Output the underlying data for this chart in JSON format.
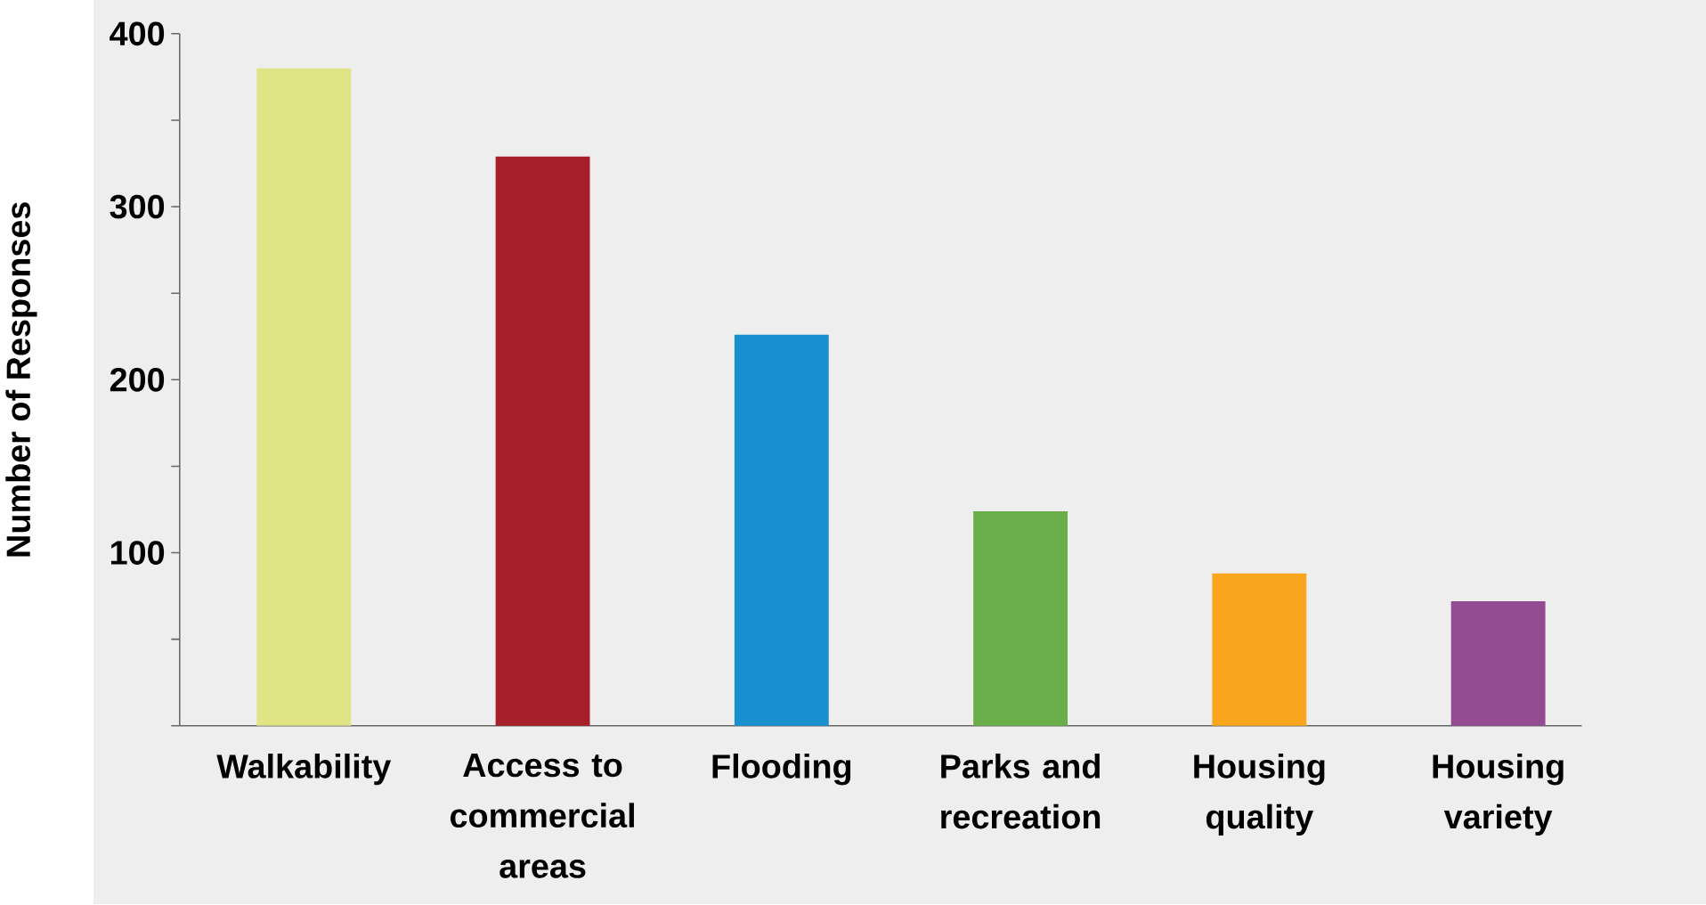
{
  "chart_data": {
    "type": "bar",
    "ylabel": "Number of Responses",
    "categories": [
      "Walkability",
      "Access to commercial areas",
      "Flooding",
      "Parks and recreation",
      "Housing quality",
      "Housing variety"
    ],
    "values": [
      380,
      329,
      226,
      124,
      88,
      72
    ],
    "colors": [
      "#e0e485",
      "#a51e28",
      "#1890d0",
      "#6aae4a",
      "#f9a61c",
      "#934b91"
    ],
    "ylim": [
      0,
      400
    ],
    "yticks": [
      {
        "value": 0,
        "label": null
      },
      {
        "value": 50,
        "label": null
      },
      100,
      {
        "value": 150,
        "label": null
      },
      200,
      {
        "value": 250,
        "label": null
      },
      300,
      {
        "value": 350,
        "label": null
      },
      400
    ]
  }
}
